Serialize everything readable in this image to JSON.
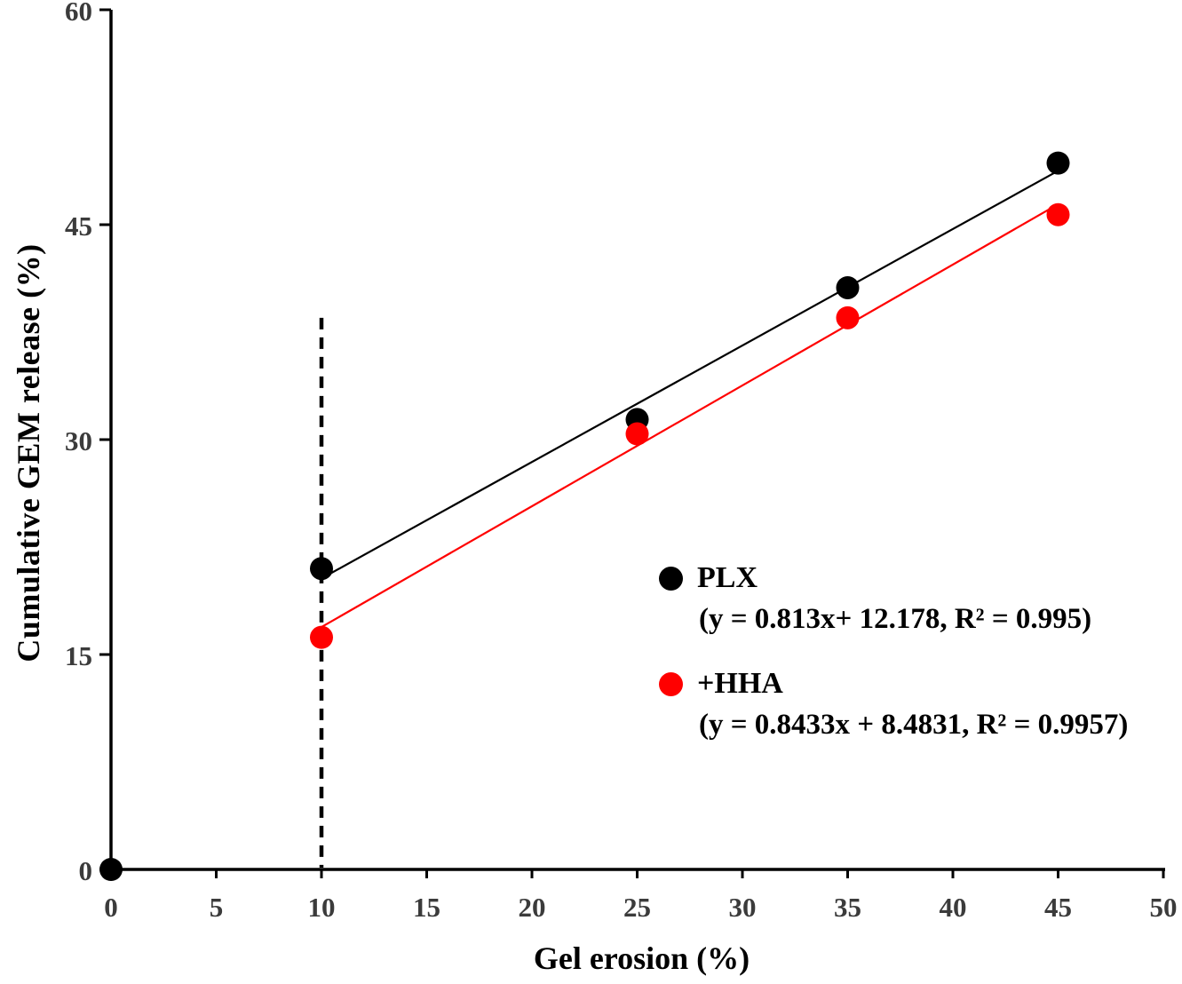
{
  "chart_data": {
    "type": "scatter",
    "title": "",
    "xlabel": "Gel erosion (%)",
    "ylabel": "Cumulative GEM release (%)",
    "xlim": [
      0,
      50
    ],
    "ylim": [
      0,
      60
    ],
    "x_ticks": [
      0,
      5,
      10,
      15,
      20,
      25,
      30,
      35,
      40,
      45,
      50
    ],
    "y_ticks": [
      0,
      15,
      30,
      45,
      60
    ],
    "grid": "off",
    "legend_position": "inside-right-middle",
    "guide_line": {
      "x": 10,
      "y_bottom": 0,
      "y_top": 38.5,
      "style": "dashed",
      "color": "#000000"
    },
    "series": [
      {
        "name": "PLX",
        "color": "#000000",
        "marker": "circle",
        "points": [
          [
            0,
            0
          ],
          [
            10,
            21.0
          ],
          [
            25,
            31.4
          ],
          [
            35,
            40.6
          ],
          [
            45,
            49.3
          ]
        ],
        "trend": {
          "slope": 0.813,
          "intercept": 12.178,
          "r2": 0.995,
          "x_range": [
            10,
            45
          ]
        },
        "equation_label": "(y = 0.813x+ 12.178, R² = 0.995)"
      },
      {
        "name": "+HHA",
        "color": "#ff0000",
        "marker": "circle",
        "points": [
          [
            10,
            16.2
          ],
          [
            25,
            30.4
          ],
          [
            35,
            38.5
          ],
          [
            45,
            45.7
          ]
        ],
        "trend": {
          "slope": 0.8433,
          "intercept": 8.4831,
          "r2": 0.9957,
          "x_range": [
            10,
            45
          ]
        },
        "equation_label": "(y = 0.8433x + 8.4831, R² = 0.9957)"
      }
    ],
    "colors": {
      "axis": "#000000",
      "tick_label": "#3b3b3b",
      "plx": "#000000",
      "hha": "#ff0000"
    }
  }
}
